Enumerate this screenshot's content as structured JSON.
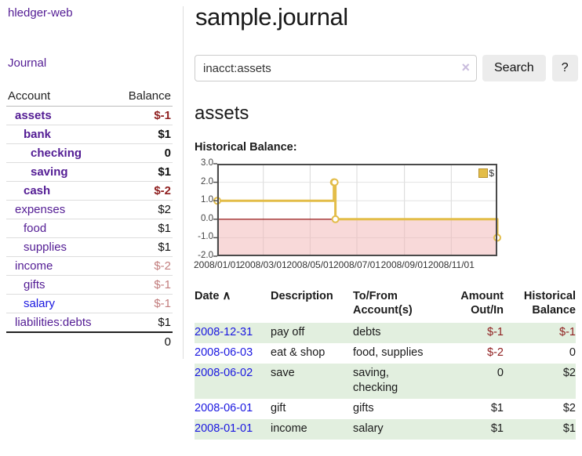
{
  "colors": {
    "link_purple": "#531c94",
    "link_blue": "#1a17e0",
    "negative": "#8f1f1f",
    "negative_soft": "#c27d7d",
    "row_stripe": "#e2efdf",
    "chart_line": "#e3bd49",
    "button_bg": "#ececec"
  },
  "sidebar": {
    "app_title": "hledger-web",
    "journal_link": "Journal",
    "accounts_header": {
      "account": "Account",
      "balance": "Balance"
    },
    "accounts": [
      {
        "label": "assets",
        "level": 0,
        "bold": true,
        "link": "purple",
        "balance": "$-1",
        "balance_class": "neg"
      },
      {
        "label": "bank",
        "level": 1,
        "bold": true,
        "link": "purple",
        "balance": "$1",
        "balance_class": ""
      },
      {
        "label": "checking",
        "level": 2,
        "bold": true,
        "link": "purple",
        "balance": "0",
        "balance_class": ""
      },
      {
        "label": "saving",
        "level": 2,
        "bold": true,
        "link": "purple",
        "balance": "$1",
        "balance_class": ""
      },
      {
        "label": "cash",
        "level": 1,
        "bold": true,
        "link": "purple",
        "balance": "$-2",
        "balance_class": "neg"
      },
      {
        "label": "expenses",
        "level": 0,
        "bold": false,
        "link": "purple",
        "balance": "$2",
        "balance_class": ""
      },
      {
        "label": "food",
        "level": 1,
        "bold": false,
        "link": "purple",
        "balance": "$1",
        "balance_class": ""
      },
      {
        "label": "supplies",
        "level": 1,
        "bold": false,
        "link": "purple",
        "balance": "$1",
        "balance_class": ""
      },
      {
        "label": "income",
        "level": 0,
        "bold": false,
        "link": "purple",
        "balance": "$-2",
        "balance_class": "rose"
      },
      {
        "label": "gifts",
        "level": 1,
        "bold": false,
        "link": "purple",
        "balance": "$-1",
        "balance_class": "rose"
      },
      {
        "label": "salary",
        "level": 1,
        "bold": false,
        "link": "blue",
        "balance": "$-1",
        "balance_class": "rose"
      },
      {
        "label": "liabilities:debts",
        "level": 0,
        "bold": false,
        "link": "purple",
        "balance": "$1",
        "balance_class": ""
      }
    ],
    "total": "0"
  },
  "main": {
    "title": "sample.journal",
    "search": {
      "value": "inacct:assets",
      "clear_glyph": "×",
      "button_label": "Search",
      "help_label": "?"
    },
    "section_title": "assets",
    "chart_label": "Historical Balance:"
  },
  "register": {
    "sort_arrow": "∧",
    "columns": [
      {
        "lines": [
          "Date"
        ],
        "align": "left",
        "sortable": true
      },
      {
        "lines": [
          "Description"
        ],
        "align": "left"
      },
      {
        "lines": [
          "To/From",
          "Account(s)"
        ],
        "align": "left"
      },
      {
        "lines": [
          "Amount",
          "Out/In"
        ],
        "align": "right"
      },
      {
        "lines": [
          "Historical",
          "Balance"
        ],
        "align": "right"
      }
    ],
    "rows": [
      {
        "date": "2008-12-31",
        "description": "pay off",
        "accounts": [
          "debts"
        ],
        "amount": "$-1",
        "amount_class": "neg",
        "balance": "$-1",
        "balance_class": "neg",
        "stripe": true
      },
      {
        "date": "2008-06-03",
        "description": "eat & shop",
        "accounts": [
          "food, supplies"
        ],
        "amount": "$-2",
        "amount_class": "neg",
        "balance": "0",
        "balance_class": "",
        "stripe": false
      },
      {
        "date": "2008-06-02",
        "description": "save",
        "accounts": [
          "saving,",
          "checking"
        ],
        "amount": "0",
        "amount_class": "",
        "balance": "$2",
        "balance_class": "",
        "stripe": true
      },
      {
        "date": "2008-06-01",
        "description": "gift",
        "accounts": [
          "gifts"
        ],
        "amount": "$1",
        "amount_class": "",
        "balance": "$2",
        "balance_class": "",
        "stripe": false
      },
      {
        "date": "2008-01-01",
        "description": "income",
        "accounts": [
          "salary"
        ],
        "amount": "$1",
        "amount_class": "",
        "balance": "$1",
        "balance_class": "",
        "stripe": true
      }
    ]
  },
  "chart_data": {
    "type": "line",
    "step": true,
    "title": "Historical Balance",
    "xlabel": "",
    "ylabel": "",
    "ylim": [
      -2,
      3
    ],
    "y_tick_labels": [
      "3.0",
      "2.0",
      "1.0",
      "0.0",
      "-1.0",
      "-2.0"
    ],
    "x_range": [
      "2008-01-01",
      "2008-12-31"
    ],
    "x_tick_dates": [
      "2008-01-01",
      "2008-03-01",
      "2008-05-01",
      "2008-07-01",
      "2008-09-01",
      "2008-11-01"
    ],
    "x_tick_labels": [
      "2008/01/01",
      "2008/03/01",
      "2008/05/01",
      "2008/07/01",
      "2008/09/01",
      "2008/11/01"
    ],
    "series": [
      {
        "name": "$",
        "color": "#e3bd49",
        "points": [
          [
            "2008-01-01",
            1
          ],
          [
            "2008-06-01",
            2
          ],
          [
            "2008-06-02",
            2
          ],
          [
            "2008-06-03",
            0
          ],
          [
            "2008-12-31",
            -1
          ]
        ]
      }
    ],
    "legend": [
      {
        "label": "$",
        "color": "#e3bd49"
      }
    ],
    "legend_position": "top-right",
    "grid": true,
    "negative_region_fill": "#f2b4b4",
    "zero_line_color": "#8b0000",
    "border_color": "#4a4a4a"
  }
}
